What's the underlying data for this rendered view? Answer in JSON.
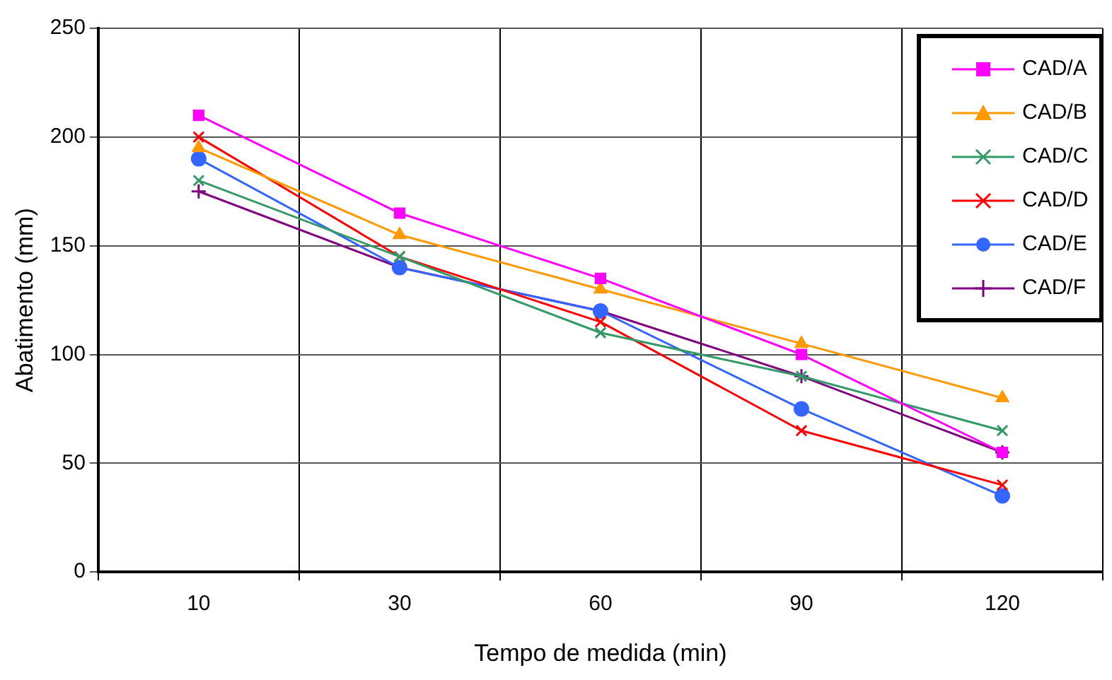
{
  "chart_data": {
    "type": "line",
    "xlabel": "Tempo de medida (min)",
    "ylabel": "Abatimento (mm)",
    "categories": [
      "10",
      "30",
      "60",
      "90",
      "120"
    ],
    "ylim": [
      0,
      250
    ],
    "yticks": [
      0,
      50,
      100,
      150,
      200,
      250
    ],
    "grid": true,
    "legend": "top right",
    "line_style": "solid",
    "series": [
      {
        "name": "CAD/A",
        "color": "#ff00ff",
        "marker": "square",
        "values": [
          210,
          165,
          135,
          100,
          55
        ]
      },
      {
        "name": "CAD/B",
        "color": "#ff9900",
        "marker": "triangle",
        "values": [
          195,
          155,
          130,
          105,
          80
        ]
      },
      {
        "name": "CAD/C",
        "color": "#339966",
        "marker": "cross",
        "values": [
          180,
          145,
          110,
          90,
          65
        ]
      },
      {
        "name": "CAD/D",
        "color": "#ff0000",
        "marker": "cross",
        "values": [
          200,
          145,
          115,
          65,
          40
        ]
      },
      {
        "name": "CAD/E",
        "color": "#3366ff",
        "marker": "circle",
        "values": [
          190,
          140,
          120,
          75,
          35
        ]
      },
      {
        "name": "CAD/F",
        "color": "#800080",
        "marker": "plus",
        "values": [
          175,
          140,
          120,
          90,
          55
        ]
      }
    ]
  }
}
